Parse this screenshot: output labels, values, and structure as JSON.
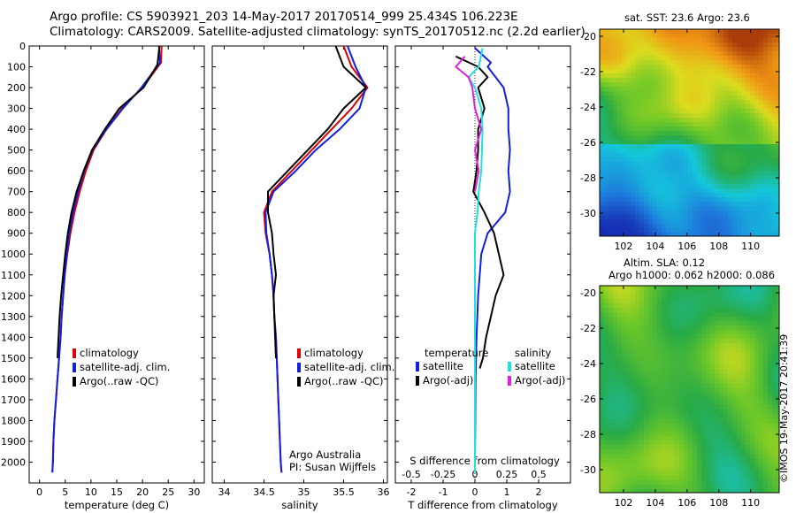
{
  "header": {
    "line1": "Argo profile: CS 5903921_203 14-May-2017 20170514_999 25.434S 106.223E",
    "line2": "Climatology: CARS2009. Satellite-adjusted climatology: synTS_20170512.nc (2.2d earlier)"
  },
  "credit": "©IMOS 19-May-2017 20:41:39",
  "colors": {
    "climatology": "#e00000",
    "satellite": "#1020e0",
    "argo": "#000000",
    "sal_satellite": "#20e0e0",
    "sal_argo": "#e020e0"
  },
  "chart_data": [
    {
      "type": "line",
      "xlabel": "temperature (deg C)",
      "xticks": [
        "0",
        "5",
        "10",
        "15",
        "20",
        "25",
        "30"
      ],
      "xlim": [
        -2,
        32
      ],
      "ylim": [
        0,
        2100
      ],
      "yticks": [
        "0",
        "100",
        "200",
        "300",
        "400",
        "500",
        "600",
        "700",
        "800",
        "900",
        "1000",
        "1100",
        "1200",
        "1300",
        "1400",
        "1500",
        "1600",
        "1700",
        "1800",
        "1900",
        "2000"
      ],
      "y_reversed": true,
      "legend": [
        "climatology",
        "satellite-adj. clim.",
        "Argo(..raw -QC)"
      ],
      "series": [
        {
          "name": "climatology",
          "x": [
            23.7,
            23.6,
            20,
            16,
            13,
            10.5,
            9,
            7.8,
            6.8,
            6,
            5.4,
            4.9,
            4.6,
            4.3,
            4.1,
            3.8,
            3.5,
            3.2,
            2.9,
            2.7,
            2.6,
            2.5
          ],
          "y": [
            0,
            80,
            200,
            300,
            400,
            500,
            600,
            700,
            800,
            900,
            1000,
            1100,
            1200,
            1300,
            1400,
            1500,
            1600,
            1700,
            1800,
            1900,
            2000,
            2050
          ]
        },
        {
          "name": "satellite-adj. clim.",
          "x": [
            23.2,
            23.4,
            19.8,
            16.2,
            13,
            10.3,
            8.7,
            7.5,
            6.5,
            5.8,
            5.3,
            4.9,
            4.6,
            4.3,
            4.1,
            3.8,
            3.5,
            3.2,
            2.9,
            2.7,
            2.6,
            2.5
          ],
          "y": [
            0,
            80,
            200,
            300,
            400,
            500,
            600,
            700,
            800,
            900,
            1000,
            1100,
            1200,
            1300,
            1400,
            1500,
            1600,
            1700,
            1800,
            1900,
            2000,
            2050
          ]
        },
        {
          "name": "Argo(..raw -QC)",
          "x": [
            23.3,
            22.9,
            20.2,
            15.5,
            12.7,
            10.2,
            8.6,
            7.2,
            6.2,
            5.5,
            5,
            4.6,
            4.2,
            3.9,
            3.7,
            3.5
          ],
          "y": [
            0,
            90,
            200,
            300,
            400,
            500,
            600,
            700,
            800,
            900,
            1000,
            1100,
            1200,
            1300,
            1400,
            1500
          ]
        }
      ]
    },
    {
      "type": "line",
      "xlabel": "salinity",
      "xticks": [
        "34",
        "34.5",
        "35",
        "35.5",
        "36"
      ],
      "xlim": [
        33.85,
        36.05
      ],
      "ylim": [
        0,
        2100
      ],
      "y_reversed": true,
      "legend": [
        "climatology",
        "satellite-adj. clim.",
        "Argo(..raw -QC)"
      ],
      "annotation": [
        "Argo Australia",
        "PI: Susan Wijffels"
      ],
      "series": [
        {
          "name": "climatology",
          "x": [
            35.5,
            35.6,
            35.8,
            35.6,
            35.35,
            35.1,
            34.85,
            34.6,
            34.5,
            34.52,
            34.57,
            34.6,
            34.62,
            34.63,
            34.65,
            34.66,
            34.67,
            34.68,
            34.69,
            34.7,
            34.71,
            34.72
          ],
          "y": [
            0,
            100,
            200,
            300,
            400,
            500,
            600,
            700,
            800,
            900,
            1000,
            1100,
            1200,
            1300,
            1400,
            1500,
            1600,
            1700,
            1800,
            1900,
            2000,
            2050
          ]
        },
        {
          "name": "satellite-adj. clim.",
          "x": [
            35.55,
            35.65,
            35.78,
            35.7,
            35.45,
            35.15,
            34.9,
            34.62,
            34.52,
            34.53,
            34.57,
            34.6,
            34.62,
            34.63,
            34.65,
            34.66,
            34.67,
            34.68,
            34.69,
            34.7,
            34.71,
            34.72
          ],
          "y": [
            0,
            100,
            200,
            300,
            400,
            500,
            600,
            700,
            800,
            900,
            1000,
            1100,
            1200,
            1300,
            1400,
            1500,
            1600,
            1700,
            1800,
            1900,
            2000,
            2050
          ]
        },
        {
          "name": "Argo(..raw -QC)",
          "x": [
            35.4,
            35.5,
            35.78,
            35.5,
            35.3,
            35.05,
            34.8,
            34.55,
            34.55,
            34.6,
            34.62,
            34.65,
            34.62,
            34.63,
            34.64,
            34.65
          ],
          "y": [
            0,
            100,
            200,
            300,
            400,
            500,
            600,
            700,
            800,
            900,
            1000,
            1100,
            1200,
            1300,
            1400,
            1500
          ]
        }
      ]
    },
    {
      "type": "line",
      "xlabel": "T difference from climatology",
      "xticks": [
        "-2",
        "-1",
        "0",
        "1",
        "2"
      ],
      "xlim": [
        -2.5,
        3.0
      ],
      "xlabel_top": "S difference from climatology",
      "xticks_top": [
        "-0.5",
        "-0.25",
        "0",
        "0.25",
        "0.5"
      ],
      "xlim_top": [
        -0.625,
        0.75
      ],
      "ylim": [
        0,
        2100
      ],
      "y_reversed": true,
      "legend_titles": [
        "temperature",
        "salinity"
      ],
      "legend": [
        "satellite",
        "Argo(-adj)",
        "satellite",
        "Argo(-adj)"
      ],
      "series": [
        {
          "name": "temperature satellite",
          "x": [
            0,
            0.5,
            0.4,
            0.9,
            1.05,
            1.05,
            1.1,
            1.05,
            1.1,
            0.95,
            0.4,
            0.2,
            0.1,
            0.05,
            0.02,
            0.01,
            0,
            0
          ],
          "y": [
            10,
            80,
            100,
            200,
            300,
            400,
            500,
            600,
            700,
            800,
            900,
            1000,
            1200,
            1400,
            1600,
            1800,
            2000,
            2050
          ]
        },
        {
          "name": "temperature Argo(-adj)",
          "x": [
            -0.6,
            0.1,
            0.4,
            0.1,
            0.3,
            0.1,
            0.1,
            0.05,
            -0.05,
            0.3,
            0.6,
            0.75,
            0.9,
            0.65,
            0.5,
            0.35,
            0.25,
            0.15
          ],
          "y": [
            50,
            100,
            150,
            200,
            300,
            400,
            500,
            600,
            700,
            800,
            900,
            1000,
            1100,
            1200,
            1300,
            1400,
            1500,
            1550
          ]
        },
        {
          "name": "salinity satellite",
          "x": [
            0.06,
            0.03,
            -0.05,
            0,
            0.05,
            0.06,
            0.05,
            0.03,
            0.02,
            0,
            0,
            0,
            0,
            0,
            0,
            0
          ],
          "y": [
            10,
            100,
            150,
            200,
            300,
            400,
            600,
            700,
            800,
            900,
            1000,
            1200,
            1400,
            1600,
            1800,
            2050
          ]
        },
        {
          "name": "salinity Argo(-adj)",
          "x": [
            -0.08,
            -0.15,
            -0.05,
            -0.02,
            0,
            0.05,
            0,
            0.03,
            0
          ],
          "y": [
            50,
            100,
            150,
            200,
            300,
            400,
            500,
            600,
            700
          ]
        }
      ]
    },
    {
      "type": "heatmap",
      "title": "sat. SST: 23.6 Argo: 23.6",
      "xticks": [
        "102",
        "104",
        "106",
        "108",
        "110"
      ],
      "yticks": [
        "-20",
        "-22",
        "-24",
        "-26",
        "-28",
        "-30"
      ],
      "xlim": [
        100.5,
        111.8
      ],
      "ylim": [
        -31.3,
        -19.6
      ]
    },
    {
      "type": "heatmap",
      "title_lines": [
        "Altim. SLA: 0.12",
        "Argo h1000: 0.062 h2000: 0.086"
      ],
      "xticks": [
        "102",
        "104",
        "106",
        "108",
        "110"
      ],
      "yticks": [
        "-20",
        "-22",
        "-24",
        "-26",
        "-28",
        "-30"
      ],
      "xlim": [
        100.5,
        111.8
      ],
      "ylim": [
        -31.3,
        -19.6
      ]
    }
  ]
}
